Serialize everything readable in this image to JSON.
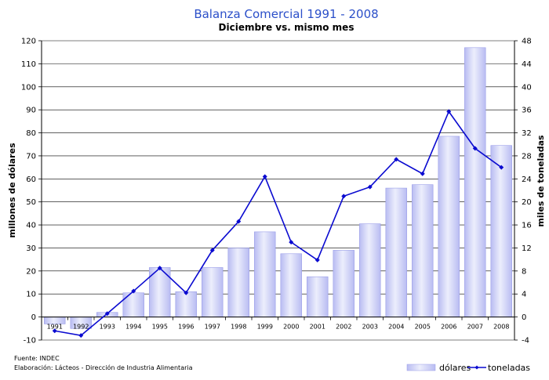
{
  "chart_data": {
    "type": "bar",
    "title": "Balanza Comercial 1991 - 2008",
    "subtitle": "Diciembre vs. mismo mes",
    "categories": [
      "1991",
      "1992",
      "1993",
      "1994",
      "1995",
      "1996",
      "1997",
      "1998",
      "1999",
      "2000",
      "2001",
      "2002",
      "2003",
      "2004",
      "2005",
      "2006",
      "2007",
      "2008"
    ],
    "series": [
      {
        "name": "dólares",
        "type": "bar",
        "axis": "left",
        "values": [
          -3,
          -5,
          2,
          10.5,
          21.5,
          11,
          21.5,
          30,
          37,
          27.5,
          17.5,
          29,
          40.5,
          56,
          57.5,
          78.5,
          117,
          74.5
        ]
      },
      {
        "name": "toneladas",
        "type": "line",
        "axis": "right",
        "values": [
          -2.4,
          -3.2,
          0.6,
          4.5,
          8.5,
          4.2,
          11.6,
          16.6,
          24.4,
          13.0,
          9.9,
          21.0,
          22.6,
          27.4,
          24.9,
          35.7,
          29.3,
          26.0
        ]
      }
    ],
    "ylabel": "millones de dólares",
    "y2label": "miles de toneladas",
    "ylim": [
      -10,
      120
    ],
    "y2lim": [
      -4,
      48
    ],
    "yticks": [
      -10,
      0,
      10,
      20,
      30,
      40,
      50,
      60,
      70,
      80,
      90,
      100,
      110,
      120
    ],
    "y2ticks": [
      -4,
      0,
      4,
      8,
      12,
      16,
      20,
      24,
      28,
      32,
      36,
      40,
      44,
      48
    ],
    "grid": true,
    "legend_position": "bottom-right",
    "colors": {
      "bar": "#b9bcf2",
      "bar_light": "#e4e5fb",
      "bar_edge": "#9a9ee8",
      "line": "#0a0ad0",
      "grid": "#000000",
      "title": "#2b4fc9"
    }
  },
  "footer": {
    "source": "Fuente: INDEC",
    "elaboration": "Elaboración: Lácteos - Dirección de Industria Alimentaria"
  }
}
